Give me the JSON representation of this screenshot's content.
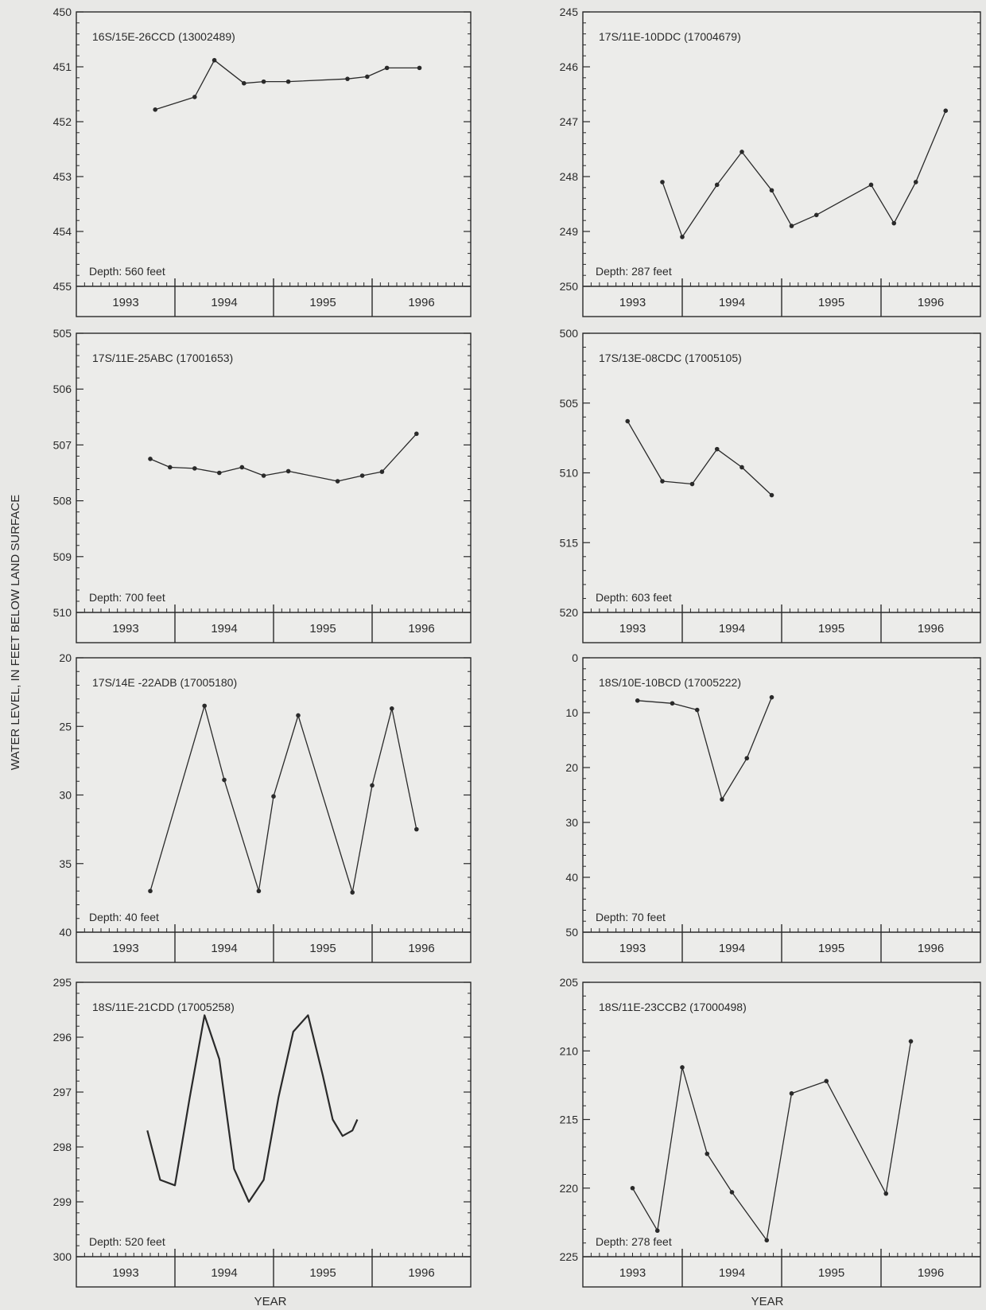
{
  "figure": {
    "ylabel": "WATER LEVEL, IN FEET BELOW LAND SURFACE",
    "xlabel_left": "YEAR",
    "xlabel_right": "YEAR",
    "colors": {
      "background": "#e8e8e6",
      "plot": "#ececea",
      "ink": "#2a2a2a"
    }
  },
  "chart_data": [
    {
      "type": "line",
      "title": "16S/15E-26CCD (13002489)",
      "annotation": "Depth: 560 feet",
      "ylim": [
        450,
        455
      ],
      "inverted": true,
      "yticks": [
        450,
        451,
        452,
        453,
        454,
        455
      ],
      "xlim": [
        1993.0,
        1997.0
      ],
      "xticks": [
        "1993",
        "1994",
        "1995",
        "1996"
      ],
      "x": [
        1993.8,
        1994.2,
        1994.4,
        1994.7,
        1994.9,
        1995.15,
        1995.75,
        1995.95,
        1996.15,
        1996.48
      ],
      "y": [
        451.78,
        451.55,
        450.88,
        451.3,
        451.27,
        451.27,
        451.22,
        451.18,
        451.02,
        451.02
      ],
      "markers": true
    },
    {
      "type": "line",
      "title": "17S/11E-10DDC (17004679)",
      "annotation": "Depth: 287 feet",
      "ylim": [
        245,
        250
      ],
      "inverted": true,
      "yticks": [
        245,
        246,
        247,
        248,
        249,
        250
      ],
      "xlim": [
        1993.0,
        1997.0
      ],
      "xticks": [
        "1993",
        "1994",
        "1995",
        "1996"
      ],
      "x": [
        1993.8,
        1994.0,
        1994.35,
        1994.6,
        1994.9,
        1995.1,
        1995.35,
        1995.9,
        1996.13,
        1996.35,
        1996.65
      ],
      "y": [
        248.1,
        249.1,
        248.15,
        247.55,
        248.25,
        248.9,
        248.7,
        248.15,
        248.85,
        248.1,
        246.8
      ],
      "markers": true
    },
    {
      "type": "line",
      "title": "17S/11E-25ABC (17001653)",
      "annotation": "Depth: 700 feet",
      "ylim": [
        505,
        510
      ],
      "inverted": true,
      "yticks": [
        505,
        506,
        507,
        508,
        509,
        510
      ],
      "xlim": [
        1993.0,
        1997.0
      ],
      "xticks": [
        "1993",
        "1994",
        "1995",
        "1996"
      ],
      "x": [
        1993.75,
        1993.95,
        1994.2,
        1994.45,
        1994.68,
        1994.9,
        1995.15,
        1995.65,
        1995.9,
        1996.1,
        1996.45
      ],
      "y": [
        507.25,
        507.4,
        507.42,
        507.5,
        507.4,
        507.55,
        507.47,
        507.65,
        507.55,
        507.48,
        506.8
      ],
      "markers": true
    },
    {
      "type": "line",
      "title": "17S/13E-08CDC (17005105)",
      "annotation": "Depth: 603 feet",
      "ylim": [
        500,
        520
      ],
      "inverted": true,
      "yticks": [
        500,
        505,
        510,
        515,
        520
      ],
      "xlim": [
        1993.0,
        1997.0
      ],
      "xticks": [
        "1993",
        "1994",
        "1995",
        "1996"
      ],
      "x": [
        1993.45,
        1993.8,
        1994.1,
        1994.35,
        1994.6,
        1994.9
      ],
      "y": [
        506.3,
        510.6,
        510.8,
        508.3,
        509.6,
        511.6
      ],
      "markers": true
    },
    {
      "type": "line",
      "title": "17S/14E -22ADB (17005180)",
      "annotation": "Depth: 40 feet",
      "ylim": [
        20,
        40
      ],
      "inverted": true,
      "yticks": [
        20,
        25,
        30,
        35,
        40
      ],
      "xlim": [
        1993.0,
        1997.0
      ],
      "xticks": [
        "1993",
        "1994",
        "1995",
        "1996"
      ],
      "x": [
        1993.75,
        1994.3,
        1994.5,
        1994.85,
        1995.0,
        1995.25,
        1995.8,
        1996.0,
        1996.2,
        1996.45
      ],
      "y": [
        37.0,
        23.5,
        28.9,
        37.0,
        30.1,
        24.2,
        37.1,
        29.3,
        23.7,
        32.5
      ],
      "markers": true
    },
    {
      "type": "line",
      "title": "18S/10E-10BCD (17005222)",
      "annotation": "Depth: 70 feet",
      "ylim": [
        0,
        50
      ],
      "inverted": true,
      "yticks": [
        0,
        10,
        20,
        30,
        40,
        50
      ],
      "xlim": [
        1993.0,
        1997.0
      ],
      "xticks": [
        "1993",
        "1994",
        "1995",
        "1996"
      ],
      "x": [
        1993.55,
        1993.9,
        1994.15,
        1994.4,
        1994.65,
        1994.9
      ],
      "y": [
        7.8,
        8.3,
        9.5,
        25.8,
        18.3,
        7.2
      ],
      "markers": true
    },
    {
      "type": "line",
      "title": "18S/11E-21CDD (17005258)",
      "annotation": "Depth: 520 feet",
      "ylim": [
        295,
        300
      ],
      "inverted": true,
      "yticks": [
        295,
        296,
        297,
        298,
        299,
        300
      ],
      "xlim": [
        1993.0,
        1997.0
      ],
      "xticks": [
        "1993",
        "1994",
        "1995",
        "1996"
      ],
      "x": [
        1993.72,
        1993.85,
        1994.0,
        1994.15,
        1994.3,
        1994.45,
        1994.6,
        1994.75,
        1994.9,
        1995.05,
        1995.2,
        1995.35,
        1995.5,
        1995.6,
        1995.7,
        1995.8,
        1995.85
      ],
      "y": [
        297.7,
        298.6,
        298.7,
        297.1,
        295.6,
        296.4,
        298.4,
        299.0,
        298.6,
        297.1,
        295.9,
        295.6,
        296.7,
        297.5,
        297.8,
        297.7,
        297.5
      ],
      "markers": false
    },
    {
      "type": "line",
      "title": "18S/11E-23CCB2 (17000498)",
      "annotation": "Depth: 278 feet",
      "ylim": [
        205,
        225
      ],
      "inverted": true,
      "yticks": [
        205,
        210,
        215,
        220,
        225
      ],
      "xlim": [
        1993.0,
        1997.0
      ],
      "xticks": [
        "1993",
        "1994",
        "1995",
        "1996"
      ],
      "x": [
        1993.5,
        1993.75,
        1994.0,
        1994.25,
        1994.5,
        1994.85,
        1995.1,
        1995.45,
        1996.05,
        1996.3
      ],
      "y": [
        220.0,
        223.1,
        211.2,
        217.5,
        220.3,
        223.8,
        213.1,
        212.2,
        220.4,
        209.3
      ],
      "markers": true
    }
  ]
}
